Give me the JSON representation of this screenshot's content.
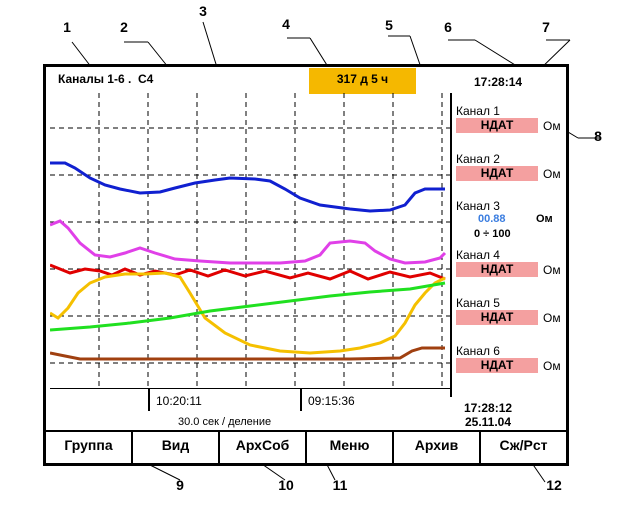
{
  "header": {
    "channels_title": "Каналы 1-6 .",
    "unit_code": "C4",
    "uptime": "317 д  5 ч",
    "current_time": "17:28:14"
  },
  "channels": [
    {
      "label": "Канал 1",
      "value": "НДАТ",
      "unit": "Ом"
    },
    {
      "label": "Канал 2",
      "value": "НДАТ",
      "unit": "Ом"
    },
    {
      "label": "Канал 3",
      "value": "00.88",
      "unit": "Ом",
      "range": "0 ÷ 100"
    },
    {
      "label": "Канал 4",
      "value": "НДАТ",
      "unit": "Ом"
    },
    {
      "label": "Канал 5",
      "value": "НДАТ",
      "unit": "Ом"
    },
    {
      "label": "Канал 6",
      "value": "НДАТ",
      "unit": "Ом"
    }
  ],
  "time_axis": {
    "mark_1": "10:20:11",
    "mark_2": "09:15:36",
    "scale": "30.0 сек  /  деление"
  },
  "status": {
    "time": "17:28:12",
    "date": "25.11.04"
  },
  "softkeys": [
    "Группа",
    "Вид",
    "АрхСоб",
    "Меню",
    "Архив",
    "Сж/Рст"
  ],
  "callouts": [
    "1",
    "2",
    "3",
    "4",
    "5",
    "6",
    "7",
    "8",
    "9",
    "10",
    "11",
    "12"
  ],
  "colors": {
    "uptime_bg": "#f5b800",
    "badge_bg": "#f4a0a0",
    "value_blue": "#3a7de0",
    "trace_blue": "#1020d0",
    "trace_magenta": "#e040e8",
    "trace_red": "#e00000",
    "trace_yellow": "#f5c000",
    "trace_green": "#20e020",
    "trace_brown": "#a04010"
  }
}
